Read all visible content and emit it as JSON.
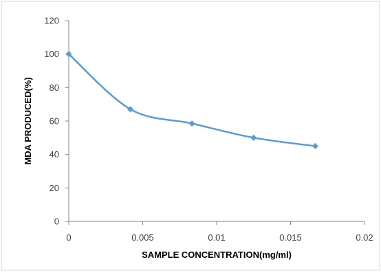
{
  "chart_data": {
    "type": "line",
    "title": "",
    "xlabel": "SAMPLE CONCENTRATION(mg/ml)",
    "ylabel": "MDA PRODUCED(%)",
    "xlim": [
      0,
      0.02
    ],
    "ylim": [
      0,
      120
    ],
    "x_ticks": [
      "0",
      "0.005",
      "0.01",
      "0.015",
      "0.02"
    ],
    "y_ticks": [
      "0",
      "20",
      "40",
      "60",
      "80",
      "100",
      "120"
    ],
    "grid": false,
    "legend": "none",
    "series": [
      {
        "x": [
          0,
          0.00417,
          0.00833,
          0.0125,
          0.01667
        ],
        "y": [
          100,
          67,
          58.5,
          50,
          45
        ],
        "color": "#5b9bd5",
        "marker": "diamond",
        "smooth": true
      }
    ]
  }
}
